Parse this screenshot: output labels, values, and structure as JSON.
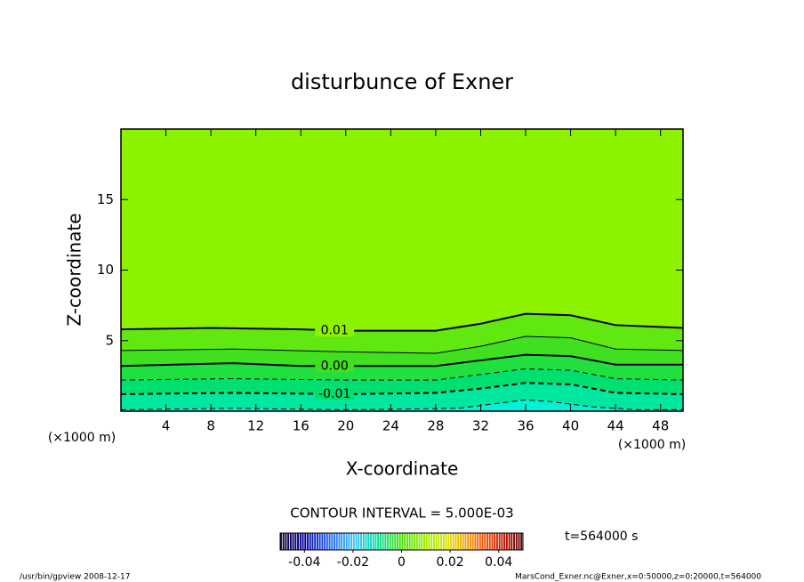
{
  "chart_data": {
    "type": "contour",
    "title": "disturbunce of Exner",
    "x_label": "X-coordinate",
    "y_label": "Z-coordinate",
    "x_unit": "(×1000 m)",
    "y_unit": "(×1000 m)",
    "xlim": [
      0,
      50
    ],
    "ylim": [
      0,
      20
    ],
    "xticks": [
      4,
      8,
      12,
      16,
      20,
      24,
      28,
      32,
      36,
      40,
      44,
      48
    ],
    "yticks": [
      5,
      10,
      15
    ],
    "bottom_color": "#00f0d8",
    "contours": [
      {
        "level": -0.015,
        "style": "dashed",
        "width": 1,
        "color": "#00e8a0",
        "x": [
          0,
          10,
          20,
          30,
          34,
          36,
          38,
          42,
          46,
          50
        ],
        "y": [
          0.1,
          0.2,
          0.1,
          0.2,
          0.6,
          0.8,
          0.7,
          0.3,
          0.1,
          0.1
        ]
      },
      {
        "level": -0.01,
        "label": "-0.01",
        "style": "dashed",
        "width": 2,
        "color": "#00e070",
        "x": [
          0,
          10,
          20,
          28,
          32,
          36,
          40,
          44,
          50
        ],
        "y": [
          1.2,
          1.3,
          1.2,
          1.3,
          1.6,
          2.0,
          1.9,
          1.3,
          1.2
        ]
      },
      {
        "level": -0.005,
        "style": "dashed",
        "width": 1,
        "color": "#20e040",
        "x": [
          0,
          10,
          20,
          28,
          32,
          36,
          40,
          44,
          50
        ],
        "y": [
          2.2,
          2.3,
          2.2,
          2.2,
          2.6,
          3.0,
          2.9,
          2.3,
          2.2
        ]
      },
      {
        "level": 0.0,
        "label": "0.00",
        "style": "solid",
        "width": 2,
        "color": "#40e020",
        "x": [
          0,
          10,
          16,
          28,
          32,
          36,
          40,
          44,
          50
        ],
        "y": [
          3.2,
          3.4,
          3.2,
          3.2,
          3.6,
          4.0,
          3.9,
          3.3,
          3.3
        ]
      },
      {
        "level": 0.005,
        "style": "solid",
        "width": 1,
        "color": "#60e810",
        "x": [
          0,
          10,
          20,
          28,
          32,
          36,
          40,
          44,
          50
        ],
        "y": [
          4.3,
          4.4,
          4.2,
          4.1,
          4.6,
          5.3,
          5.2,
          4.4,
          4.3
        ]
      },
      {
        "level": 0.01,
        "label": "0.01",
        "style": "solid",
        "width": 2,
        "color": "#8cf200",
        "x": [
          0,
          8,
          16,
          20,
          28,
          32,
          36,
          40,
          44,
          50
        ],
        "y": [
          5.8,
          5.9,
          5.8,
          5.7,
          5.7,
          6.2,
          6.9,
          6.8,
          6.1,
          5.9
        ]
      }
    ],
    "contour_interval_text": "CONTOUR INTERVAL = 5.000E-03",
    "time_text": "t=564000 s",
    "colorbar": {
      "range": [
        -0.05,
        0.05
      ],
      "ticks": [
        -0.04,
        -0.02,
        0,
        0.02,
        0.04
      ],
      "colors": [
        "#100030",
        "#0000a0",
        "#2060ff",
        "#40c0ff",
        "#00e0a0",
        "#40e000",
        "#a0f000",
        "#e0e000",
        "#ff8000",
        "#e02000",
        "#600000"
      ]
    },
    "footer_left": "/usr/bin/gpview   2008-12-17",
    "footer_right": "MarsCond_Exner.nc@Exner,x=0:50000,z=0:20000,t=564000"
  }
}
